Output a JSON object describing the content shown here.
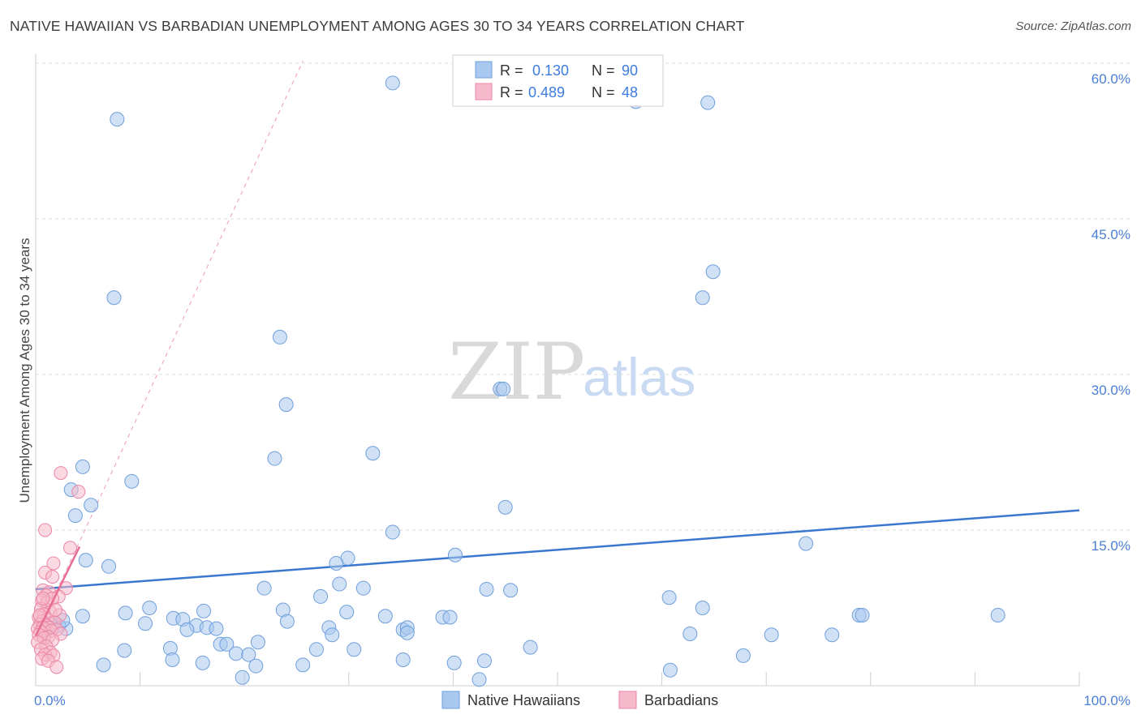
{
  "header": {
    "title": "NATIVE HAWAIIAN VS BARBADIAN UNEMPLOYMENT AMONG AGES 30 TO 34 YEARS CORRELATION CHART",
    "source": "Source: ZipAtlas.com"
  },
  "watermark": {
    "zip": "ZIP",
    "atlas": "atlas"
  },
  "colors": {
    "blue_fill": "#a9c8ef",
    "blue_stroke": "#6f9fdc",
    "blue_line": "#3a78d0",
    "pink_fill": "#f6b9cb",
    "pink_stroke": "#eb86a6",
    "pink_line": "#e86d95",
    "grid": "#dddddd",
    "tick_text": "#4a7fd4"
  },
  "legend": {
    "rows": [
      {
        "r_label": "R =",
        "r_value": "0.130",
        "n_label": "N =",
        "n_value": "90"
      },
      {
        "r_label": "R =",
        "r_value": "0.489",
        "n_label": "N =",
        "n_value": "48"
      }
    ]
  },
  "chart_data": {
    "type": "scatter",
    "title": "NATIVE HAWAIIAN VS BARBADIAN UNEMPLOYMENT AMONG AGES 30 TO 34 YEARS CORRELATION CHART",
    "xlabel": "",
    "ylabel": "Unemployment Among Ages 30 to 34 years",
    "xlim": [
      0,
      100
    ],
    "ylim": [
      0,
      63
    ],
    "x_tick_labels": [
      "0.0%",
      "100.0%"
    ],
    "y_ticks": [
      15,
      30,
      45,
      60
    ],
    "y_tick_labels": [
      "15.0%",
      "30.0%",
      "45.0%",
      "60.0%"
    ],
    "grid": true,
    "legend_position": "top-center",
    "series": [
      {
        "name": "Native Hawaiians",
        "r": 0.13,
        "n": 90,
        "trend": {
          "x": [
            0,
            100
          ],
          "y": [
            9.3,
            16.9
          ],
          "style": "solid"
        },
        "points": [
          [
            7.8,
            54.6
          ],
          [
            34.2,
            58.1
          ],
          [
            57.5,
            56.3
          ],
          [
            64.4,
            56.2
          ],
          [
            7.5,
            37.4
          ],
          [
            64.9,
            39.9
          ],
          [
            63.9,
            37.4
          ],
          [
            23.4,
            33.6
          ],
          [
            24.0,
            27.1
          ],
          [
            44.5,
            28.6
          ],
          [
            44.8,
            28.6
          ],
          [
            32.3,
            22.4
          ],
          [
            22.9,
            21.9
          ],
          [
            4.5,
            21.1
          ],
          [
            9.2,
            19.7
          ],
          [
            3.4,
            18.9
          ],
          [
            5.3,
            17.4
          ],
          [
            45.0,
            17.2
          ],
          [
            3.8,
            16.4
          ],
          [
            34.2,
            14.8
          ],
          [
            73.8,
            13.7
          ],
          [
            40.2,
            12.6
          ],
          [
            29.9,
            12.3
          ],
          [
            4.8,
            12.1
          ],
          [
            28.8,
            11.8
          ],
          [
            7.0,
            11.5
          ],
          [
            21.9,
            9.4
          ],
          [
            29.1,
            9.8
          ],
          [
            31.4,
            9.4
          ],
          [
            43.2,
            9.3
          ],
          [
            45.5,
            9.2
          ],
          [
            27.3,
            8.6
          ],
          [
            60.7,
            8.5
          ],
          [
            10.9,
            7.5
          ],
          [
            8.6,
            7.0
          ],
          [
            16.1,
            7.2
          ],
          [
            23.7,
            7.3
          ],
          [
            29.8,
            7.1
          ],
          [
            63.9,
            7.5
          ],
          [
            4.5,
            6.7
          ],
          [
            13.2,
            6.5
          ],
          [
            14.1,
            6.4
          ],
          [
            33.5,
            6.7
          ],
          [
            39.0,
            6.6
          ],
          [
            39.7,
            6.6
          ],
          [
            78.9,
            6.8
          ],
          [
            79.2,
            6.8
          ],
          [
            92.2,
            6.8
          ],
          [
            10.5,
            6.0
          ],
          [
            24.1,
            6.2
          ],
          [
            15.4,
            5.8
          ],
          [
            16.4,
            5.6
          ],
          [
            17.3,
            5.5
          ],
          [
            28.1,
            5.6
          ],
          [
            35.2,
            5.4
          ],
          [
            35.6,
            5.6
          ],
          [
            1.1,
            5.7
          ],
          [
            2.9,
            5.5
          ],
          [
            14.5,
            5.4
          ],
          [
            28.4,
            4.9
          ],
          [
            35.6,
            5.1
          ],
          [
            62.7,
            5.0
          ],
          [
            70.5,
            4.9
          ],
          [
            76.3,
            4.9
          ],
          [
            17.7,
            4.0
          ],
          [
            18.3,
            4.0
          ],
          [
            21.3,
            4.2
          ],
          [
            12.9,
            3.6
          ],
          [
            8.5,
            3.4
          ],
          [
            26.9,
            3.5
          ],
          [
            30.5,
            3.5
          ],
          [
            47.4,
            3.7
          ],
          [
            19.2,
            3.1
          ],
          [
            20.4,
            3.0
          ],
          [
            67.8,
            2.9
          ],
          [
            13.1,
            2.5
          ],
          [
            16.0,
            2.2
          ],
          [
            6.5,
            2.0
          ],
          [
            25.6,
            2.0
          ],
          [
            35.2,
            2.5
          ],
          [
            40.1,
            2.2
          ],
          [
            43.0,
            2.4
          ],
          [
            21.1,
            1.9
          ],
          [
            60.8,
            1.5
          ],
          [
            19.8,
            0.8
          ],
          [
            42.5,
            0.6
          ],
          [
            1.5,
            6.0
          ],
          [
            2.2,
            5.8
          ],
          [
            0.9,
            5.2
          ],
          [
            2.6,
            6.3
          ]
        ]
      },
      {
        "name": "Barbadians",
        "r": 0.489,
        "n": 48,
        "trend": {
          "x": [
            0,
            4.2
          ],
          "y": [
            4.8,
            13.4
          ],
          "style": "solid",
          "extended": {
            "x": [
              0,
              25.6
            ],
            "y": [
              4.8,
              60.2
            ],
            "style": "dashed"
          }
        },
        "points": [
          [
            2.4,
            20.5
          ],
          [
            4.1,
            18.7
          ],
          [
            0.9,
            15.0
          ],
          [
            3.3,
            13.3
          ],
          [
            1.7,
            11.8
          ],
          [
            0.9,
            10.9
          ],
          [
            1.6,
            10.5
          ],
          [
            2.9,
            9.4
          ],
          [
            0.7,
            9.2
          ],
          [
            1.3,
            9.0
          ],
          [
            1.0,
            8.7
          ],
          [
            2.2,
            8.6
          ],
          [
            0.6,
            8.2
          ],
          [
            1.1,
            8.0
          ],
          [
            1.6,
            8.4
          ],
          [
            0.5,
            7.4
          ],
          [
            1.4,
            7.1
          ],
          [
            0.8,
            6.9
          ],
          [
            2.3,
            6.8
          ],
          [
            0.3,
            6.6
          ],
          [
            1.1,
            6.4
          ],
          [
            0.6,
            6.2
          ],
          [
            1.8,
            6.1
          ],
          [
            0.4,
            5.9
          ],
          [
            1.0,
            5.8
          ],
          [
            1.3,
            5.6
          ],
          [
            0.2,
            5.5
          ],
          [
            0.7,
            5.6
          ],
          [
            2.0,
            5.4
          ],
          [
            1.5,
            5.3
          ],
          [
            0.5,
            5.2
          ],
          [
            2.4,
            5.0
          ],
          [
            0.3,
            4.9
          ],
          [
            1.2,
            4.7
          ],
          [
            0.8,
            4.6
          ],
          [
            1.6,
            4.4
          ],
          [
            0.2,
            4.2
          ],
          [
            1.0,
            3.8
          ],
          [
            0.5,
            3.5
          ],
          [
            1.4,
            3.2
          ],
          [
            0.9,
            3.0
          ],
          [
            1.7,
            2.9
          ],
          [
            0.6,
            2.6
          ],
          [
            1.2,
            2.4
          ],
          [
            2.0,
            1.8
          ],
          [
            0.4,
            6.8
          ],
          [
            1.9,
            7.3
          ],
          [
            0.7,
            8.4
          ]
        ]
      }
    ]
  }
}
